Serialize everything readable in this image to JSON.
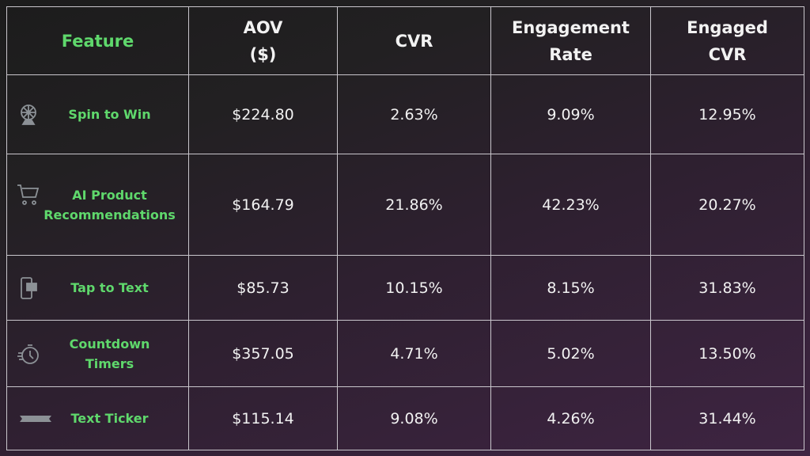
{
  "headers": {
    "feature": "Feature",
    "aov_1": "AOV",
    "aov_2": "($)",
    "cvr": "CVR",
    "eng_1": "Engagement",
    "eng_2": "Rate",
    "ecvr_1": "Engaged",
    "ecvr_2": "CVR"
  },
  "rows": [
    {
      "icon": "prize-wheel-icon",
      "feature_1": "Spin to Win",
      "feature_2": "",
      "aov": "$224.80",
      "cvr": "2.63%",
      "engagement_rate": "9.09%",
      "engaged_cvr": "12.95%"
    },
    {
      "icon": "shopping-cart-icon",
      "feature_1": "AI Product",
      "feature_2": "Recommendations",
      "aov": "$164.79",
      "cvr": "21.86%",
      "engagement_rate": "42.23%",
      "engaged_cvr": "20.27%"
    },
    {
      "icon": "phone-chat-icon",
      "feature_1": "Tap to Text",
      "feature_2": "",
      "aov": "$85.73",
      "cvr": "10.15%",
      "engagement_rate": "8.15%",
      "engaged_cvr": "31.83%"
    },
    {
      "icon": "stopwatch-icon",
      "feature_1": "Countdown",
      "feature_2": "Timers",
      "aov": "$357.05",
      "cvr": "4.71%",
      "engagement_rate": "5.02%",
      "engaged_cvr": "13.50%"
    },
    {
      "icon": "ribbon-banner-icon",
      "feature_1": "Text Ticker",
      "feature_2": "",
      "aov": "$115.14",
      "cvr": "9.08%",
      "engagement_rate": "4.26%",
      "engaged_cvr": "31.44%"
    }
  ],
  "colors": {
    "accent": "#5fd86c",
    "icon": "#8c9196",
    "border": "#c9c6cc"
  }
}
